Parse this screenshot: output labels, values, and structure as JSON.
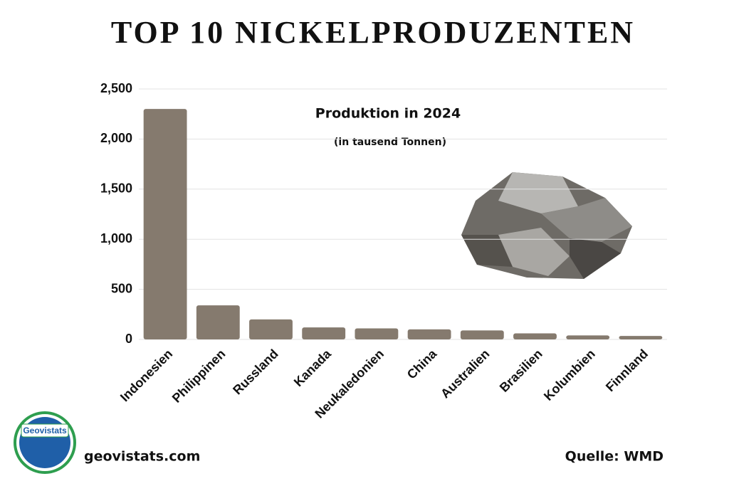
{
  "chart_data": {
    "type": "bar",
    "title": "TOP 10 NICKELPRODUZENTEN",
    "subtitle": "Produktion in 2024",
    "unit_note": "(in tausend Tonnen)",
    "categories": [
      "Indonesien",
      "Philippinen",
      "Russland",
      "Kanada",
      "Neukaledonien",
      "China",
      "Australien",
      "Brasilien",
      "Kolumbien",
      "Finnland"
    ],
    "values": [
      2300,
      340,
      200,
      120,
      110,
      100,
      90,
      60,
      40,
      35
    ],
    "color": "#857a6e",
    "ylim": [
      0,
      2500
    ],
    "yticks": [
      0,
      500,
      {
        "value": 1000,
        "label": "1,000"
      },
      {
        "value": 1500,
        "label": "1,500"
      },
      {
        "value": 2000,
        "label": "2,000"
      },
      {
        "value": 2500,
        "label": "2,500"
      }
    ],
    "grid": true,
    "logo": "Geovistats",
    "website": "geovistats.com",
    "source": "Quelle: WMD"
  }
}
